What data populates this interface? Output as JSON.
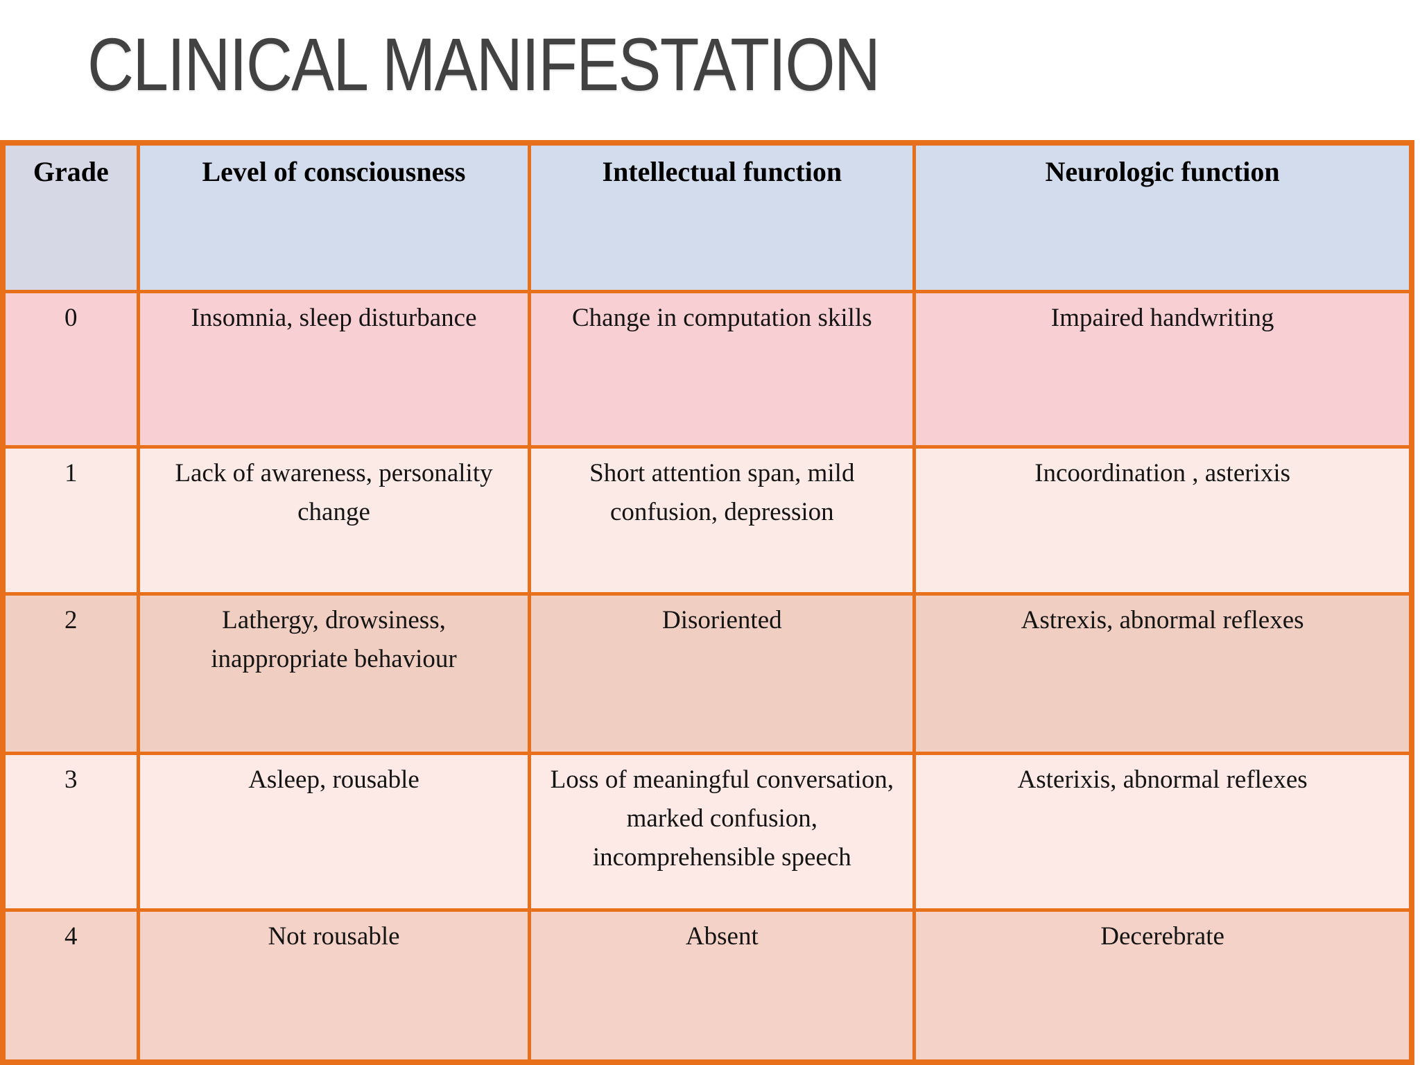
{
  "title": "CLINICAL MANIFESTATION",
  "table": {
    "headers": [
      "Grade",
      "Level of consciousness",
      "Intellectual function",
      "Neurologic function"
    ],
    "rows": [
      {
        "grade": "0",
        "cells": [
          "Insomnia, sleep disturbance",
          "Change in computation skills",
          "Impaired handwriting"
        ]
      },
      {
        "grade": "1",
        "cells": [
          "Lack of awareness, personality change",
          "Short attention span, mild confusion, depression",
          "Incoordination , asterixis"
        ]
      },
      {
        "grade": "2",
        "cells": [
          "Lathergy, drowsiness, inappropriate behaviour",
          "Disoriented",
          "Astrexis, abnormal reflexes"
        ]
      },
      {
        "grade": "3",
        "cells": [
          "Asleep, rousable",
          "Loss of meaningful conversation, marked confusion, incomprehensible speech",
          "Asterixis, abnormal reflexes"
        ]
      },
      {
        "grade": "4",
        "cells": [
          "Not rousable",
          "Absent",
          "Decerebrate"
        ]
      }
    ]
  },
  "colors": {
    "border_orange": "#e8701a",
    "header_blue": "#d3dcec",
    "header_lavender": "#d7d8e5",
    "row0_pink": "#f8cfd3",
    "row1_light_pink": "#fceae6",
    "row2_tan_pink": "#f0cec1",
    "row3_light_pink": "#fdeae6",
    "row4_peach_pink": "#f5d2c8",
    "title_gray": "#424242",
    "background": "#ffffff"
  }
}
